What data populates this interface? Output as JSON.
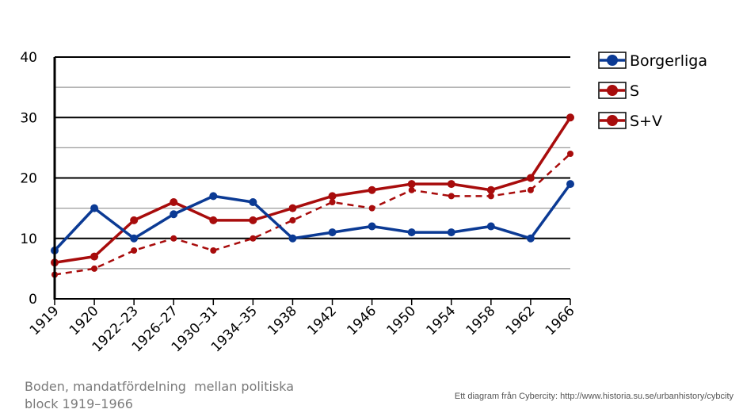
{
  "chart_data": {
    "type": "line",
    "categories": [
      "1919",
      "1920",
      "1922–23",
      "1926–27",
      "1930–31",
      "1934–35",
      "1938",
      "1942",
      "1946",
      "1950",
      "1954",
      "1958",
      "1962",
      "1966"
    ],
    "ylim": [
      0,
      40
    ],
    "yticks": [
      "0",
      "10",
      "20",
      "30",
      "40"
    ],
    "grid": "horizontal, major every 10, minor every 5",
    "legend_position": "right",
    "series": [
      {
        "name": "Borgerliga",
        "color": "#0b3a94",
        "style": "solid",
        "values": [
          8,
          15,
          10,
          14,
          17,
          16,
          10,
          11,
          12,
          11,
          11,
          12,
          10,
          19
        ]
      },
      {
        "name": "S",
        "color": "#a80c0c",
        "style": "dashed",
        "values": [
          4,
          5,
          8,
          10,
          8,
          10,
          13,
          16,
          15,
          18,
          17,
          17,
          18,
          24
        ]
      },
      {
        "name": "S+V",
        "color": "#a80c0c",
        "style": "solid",
        "values": [
          6,
          7,
          13,
          16,
          13,
          13,
          15,
          17,
          18,
          19,
          19,
          18,
          20,
          30
        ]
      }
    ]
  },
  "caption": "Boden, mandatfördelning  mellan politiska\nblock 1919–1966",
  "credit": "Ett diagram från Cybercity: http://www.historia.su.se/urbanhistory/cybcity"
}
